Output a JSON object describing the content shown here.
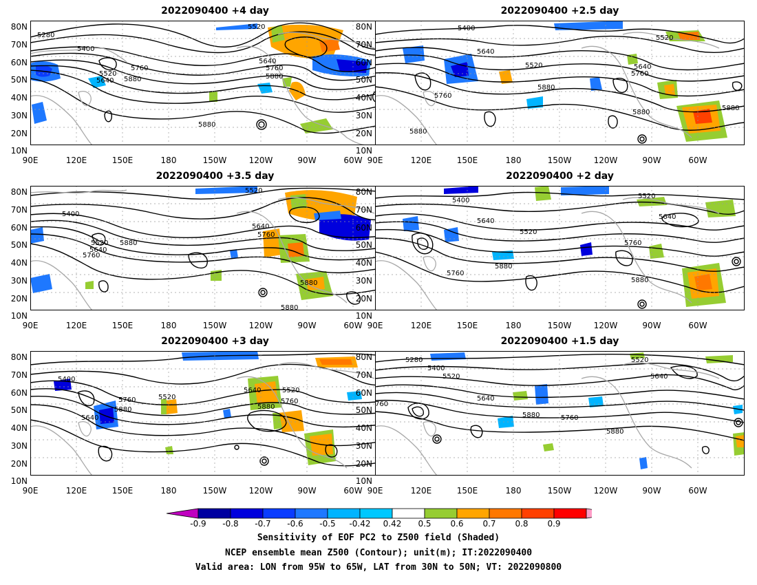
{
  "panels": [
    {
      "title": "2022090400  +4 day"
    },
    {
      "title": "2022090400  +2.5 day"
    },
    {
      "title": "2022090400  +3.5 day"
    },
    {
      "title": "2022090400  +2 day"
    },
    {
      "title": "2022090400  +3 day"
    },
    {
      "title": "2022090400  +1.5 day"
    }
  ],
  "lat_labels": [
    "80N",
    "70N",
    "60N",
    "50N",
    "40N",
    "30N",
    "20N",
    "10N"
  ],
  "lon_labels": [
    "90E",
    "120E",
    "150E",
    "180",
    "150W",
    "120W",
    "90W",
    "60W"
  ],
  "contour_labels": {
    "p0": [
      "5280",
      "5400",
      "5520",
      "5640",
      "5760",
      "5880",
      "5520",
      "5640",
      "5760",
      "5880",
      "5880"
    ],
    "p1": [
      "5400",
      "5520",
      "5640",
      "5520",
      "5880",
      "5760",
      "5640",
      "5760",
      "5880",
      "5880",
      "5880"
    ],
    "p2": [
      "5400",
      "5520",
      "5520",
      "5640",
      "5760",
      "5880",
      "5640",
      "5760",
      "5880",
      "5880"
    ],
    "p3": [
      "5400",
      "5640",
      "5520",
      "5520",
      "5760",
      "5880",
      "5760",
      "5640",
      "5880"
    ],
    "p4": [
      "5400",
      "5760",
      "5880",
      "5640",
      "5520",
      "5640",
      "5520",
      "5880",
      "5760"
    ],
    "p5": [
      "5280",
      "5400",
      "5520",
      "5640",
      "5520",
      "5640",
      "760",
      "5880",
      "5760",
      "5880"
    ]
  },
  "colorbar": {
    "ticks": [
      "-0.9",
      "-0.8",
      "-0.7",
      "-0.6",
      "-0.5",
      "-0.42",
      "0.42",
      "0.5",
      "0.6",
      "0.7",
      "0.8",
      "0.9"
    ],
    "colors": [
      "#c000c0",
      "#0000a0",
      "#0000dd",
      "#0a3cff",
      "#1e78ff",
      "#00b4ff",
      "#00c8ff",
      "#ffffff",
      "#96cd32",
      "#ffa500",
      "#ff7800",
      "#ff4000",
      "#ff0000",
      "#ff9ec8"
    ]
  },
  "captions": [
    "Sensitivity of EOF PC2 to Z500 field (Shaded)",
    "NCEP ensemble mean Z500 (Contour); unit(m); IT:2022090400",
    "Valid area: LON from 95W to 65W, LAT from 30N to 50N; VT: 2022090800"
  ]
}
